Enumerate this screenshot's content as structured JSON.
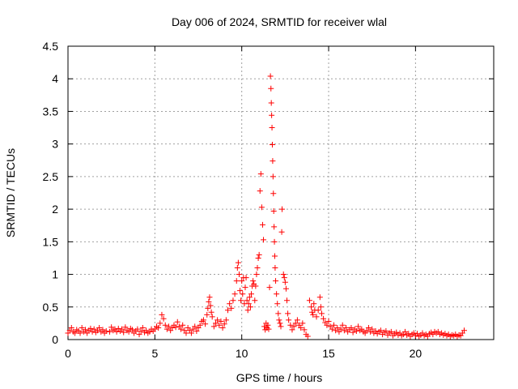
{
  "chart_data": {
    "type": "scatter",
    "title": "Day 006 of 2024, SRMTID for receiver wlal",
    "xlabel": "GPS time / hours",
    "ylabel": "SRMTID / TECUs",
    "xlim": [
      0,
      24.5
    ],
    "ylim": [
      0,
      4.5
    ],
    "xticks": [
      0,
      5,
      10,
      15,
      20
    ],
    "xtick_labels": [
      "0",
      "5",
      "10",
      "15",
      "20"
    ],
    "yticks": [
      0,
      0.5,
      1,
      1.5,
      2,
      2.5,
      3,
      3.5,
      4,
      4.5
    ],
    "ytick_labels": [
      "0",
      "0.5",
      "1",
      "1.5",
      "2",
      "2.5",
      "3",
      "3.5",
      "4",
      "4.5"
    ],
    "grid": true,
    "marker": "plus",
    "color": "#ff0000",
    "series": [
      {
        "name": "SRMTID",
        "points": [
          [
            0.0,
            0.1
          ],
          [
            0.1,
            0.14
          ],
          [
            0.2,
            0.18
          ],
          [
            0.3,
            0.12
          ],
          [
            0.4,
            0.1
          ],
          [
            0.5,
            0.15
          ],
          [
            0.6,
            0.13
          ],
          [
            0.7,
            0.1
          ],
          [
            0.8,
            0.18
          ],
          [
            0.9,
            0.12
          ],
          [
            1.0,
            0.15
          ],
          [
            1.1,
            0.1
          ],
          [
            1.2,
            0.14
          ],
          [
            1.3,
            0.17
          ],
          [
            1.4,
            0.12
          ],
          [
            1.5,
            0.16
          ],
          [
            1.6,
            0.11
          ],
          [
            1.7,
            0.14
          ],
          [
            1.8,
            0.18
          ],
          [
            1.9,
            0.12
          ],
          [
            2.0,
            0.15
          ],
          [
            2.1,
            0.1
          ],
          [
            2.2,
            0.13
          ],
          [
            2.4,
            0.12
          ],
          [
            2.5,
            0.19
          ],
          [
            2.6,
            0.14
          ],
          [
            2.7,
            0.16
          ],
          [
            2.8,
            0.12
          ],
          [
            2.9,
            0.17
          ],
          [
            3.0,
            0.13
          ],
          [
            3.1,
            0.16
          ],
          [
            3.2,
            0.11
          ],
          [
            3.3,
            0.19
          ],
          [
            3.4,
            0.14
          ],
          [
            3.5,
            0.12
          ],
          [
            3.6,
            0.17
          ],
          [
            3.7,
            0.15
          ],
          [
            3.8,
            0.1
          ],
          [
            3.9,
            0.13
          ],
          [
            4.0,
            0.16
          ],
          [
            4.1,
            0.08
          ],
          [
            4.2,
            0.13
          ],
          [
            4.3,
            0.18
          ],
          [
            4.4,
            0.11
          ],
          [
            4.5,
            0.14
          ],
          [
            4.6,
            0.1
          ],
          [
            4.7,
            0.12
          ],
          [
            4.8,
            0.16
          ],
          [
            4.9,
            0.13
          ],
          [
            5.0,
            0.16
          ],
          [
            5.1,
            0.2
          ],
          [
            5.2,
            0.18
          ],
          [
            5.3,
            0.25
          ],
          [
            5.4,
            0.38
          ],
          [
            5.5,
            0.32
          ],
          [
            5.6,
            0.22
          ],
          [
            5.7,
            0.16
          ],
          [
            5.8,
            0.2
          ],
          [
            5.9,
            0.14
          ],
          [
            6.0,
            0.18
          ],
          [
            6.1,
            0.22
          ],
          [
            6.2,
            0.19
          ],
          [
            6.3,
            0.27
          ],
          [
            6.4,
            0.2
          ],
          [
            6.5,
            0.16
          ],
          [
            6.6,
            0.22
          ],
          [
            6.7,
            0.14
          ],
          [
            6.8,
            0.1
          ],
          [
            6.9,
            0.18
          ],
          [
            7.0,
            0.14
          ],
          [
            7.1,
            0.1
          ],
          [
            7.2,
            0.16
          ],
          [
            7.3,
            0.2
          ],
          [
            7.4,
            0.13
          ],
          [
            7.5,
            0.18
          ],
          [
            7.6,
            0.22
          ],
          [
            7.7,
            0.28
          ],
          [
            7.8,
            0.3
          ],
          [
            7.9,
            0.24
          ],
          [
            8.0,
            0.38
          ],
          [
            8.05,
            0.48
          ],
          [
            8.1,
            0.58
          ],
          [
            8.15,
            0.65
          ],
          [
            8.2,
            0.52
          ],
          [
            8.25,
            0.42
          ],
          [
            8.3,
            0.35
          ],
          [
            8.4,
            0.2
          ],
          [
            8.5,
            0.25
          ],
          [
            8.6,
            0.3
          ],
          [
            8.7,
            0.22
          ],
          [
            8.8,
            0.28
          ],
          [
            8.9,
            0.18
          ],
          [
            9.0,
            0.24
          ],
          [
            9.1,
            0.3
          ],
          [
            9.2,
            0.45
          ],
          [
            9.3,
            0.55
          ],
          [
            9.4,
            0.48
          ],
          [
            9.5,
            0.6
          ],
          [
            9.6,
            0.7
          ],
          [
            9.7,
            0.9
          ],
          [
            9.75,
            1.1
          ],
          [
            9.8,
            1.18
          ],
          [
            9.85,
            1.0
          ],
          [
            9.9,
            0.75
          ],
          [
            9.95,
            0.6
          ],
          [
            10.0,
            0.9
          ],
          [
            10.05,
            0.7
          ],
          [
            10.1,
            0.95
          ],
          [
            10.15,
            0.55
          ],
          [
            10.2,
            0.8
          ],
          [
            10.25,
            0.95
          ],
          [
            10.3,
            0.6
          ],
          [
            10.35,
            0.45
          ],
          [
            10.4,
            0.55
          ],
          [
            10.45,
            0.65
          ],
          [
            10.5,
            0.5
          ],
          [
            10.55,
            0.7
          ],
          [
            10.6,
            0.82
          ],
          [
            10.65,
            0.9
          ],
          [
            10.7,
            0.85
          ],
          [
            10.75,
            0.6
          ],
          [
            10.8,
            0.82
          ],
          [
            10.85,
            1.0
          ],
          [
            10.9,
            1.1
          ],
          [
            10.95,
            1.25
          ],
          [
            11.0,
            1.3
          ],
          [
            11.05,
            2.28
          ],
          [
            11.1,
            2.54
          ],
          [
            11.15,
            2.03
          ],
          [
            11.2,
            1.76
          ],
          [
            11.25,
            1.53
          ],
          [
            11.3,
            0.2
          ],
          [
            11.35,
            0.15
          ],
          [
            11.4,
            0.25
          ],
          [
            11.45,
            0.18
          ],
          [
            11.5,
            0.22
          ],
          [
            11.55,
            0.16
          ],
          [
            11.6,
            0.8
          ],
          [
            11.65,
            4.04
          ],
          [
            11.68,
            3.85
          ],
          [
            11.7,
            3.63
          ],
          [
            11.72,
            3.44
          ],
          [
            11.74,
            3.25
          ],
          [
            11.76,
            2.99
          ],
          [
            11.78,
            2.74
          ],
          [
            11.8,
            2.5
          ],
          [
            11.82,
            2.24
          ],
          [
            11.84,
            1.97
          ],
          [
            11.86,
            1.73
          ],
          [
            11.88,
            1.5
          ],
          [
            11.9,
            1.28
          ],
          [
            11.92,
            1.1
          ],
          [
            11.95,
            0.9
          ],
          [
            12.0,
            0.7
          ],
          [
            12.05,
            0.55
          ],
          [
            12.1,
            0.4
          ],
          [
            12.15,
            0.3
          ],
          [
            12.2,
            0.25
          ],
          [
            12.25,
            0.2
          ],
          [
            12.3,
            1.65
          ],
          [
            12.32,
            2.0
          ],
          [
            12.4,
            1.0
          ],
          [
            12.45,
            0.95
          ],
          [
            12.5,
            0.88
          ],
          [
            12.55,
            0.78
          ],
          [
            12.6,
            0.6
          ],
          [
            12.65,
            0.4
          ],
          [
            12.7,
            0.3
          ],
          [
            12.8,
            0.22
          ],
          [
            12.9,
            0.15
          ],
          [
            13.0,
            0.2
          ],
          [
            13.1,
            0.25
          ],
          [
            13.2,
            0.3
          ],
          [
            13.3,
            0.22
          ],
          [
            13.4,
            0.18
          ],
          [
            13.5,
            0.25
          ],
          [
            13.6,
            0.15
          ],
          [
            13.7,
            0.08
          ],
          [
            13.8,
            0.05
          ],
          [
            13.9,
            0.6
          ],
          [
            14.0,
            0.5
          ],
          [
            14.05,
            0.42
          ],
          [
            14.1,
            0.38
          ],
          [
            14.15,
            0.55
          ],
          [
            14.2,
            0.45
          ],
          [
            14.3,
            0.35
          ],
          [
            14.4,
            0.45
          ],
          [
            14.5,
            0.65
          ],
          [
            14.55,
            0.5
          ],
          [
            14.6,
            0.4
          ],
          [
            14.7,
            0.32
          ],
          [
            14.8,
            0.26
          ],
          [
            14.9,
            0.22
          ],
          [
            15.0,
            0.28
          ],
          [
            15.1,
            0.2
          ],
          [
            15.2,
            0.16
          ],
          [
            15.3,
            0.22
          ],
          [
            15.4,
            0.14
          ],
          [
            15.5,
            0.18
          ],
          [
            15.6,
            0.12
          ],
          [
            15.7,
            0.16
          ],
          [
            15.8,
            0.22
          ],
          [
            15.9,
            0.14
          ],
          [
            16.0,
            0.18
          ],
          [
            16.1,
            0.12
          ],
          [
            16.2,
            0.15
          ],
          [
            16.3,
            0.18
          ],
          [
            16.4,
            0.11
          ],
          [
            16.5,
            0.16
          ],
          [
            16.6,
            0.13
          ],
          [
            16.7,
            0.2
          ],
          [
            16.8,
            0.14
          ],
          [
            16.9,
            0.16
          ],
          [
            17.0,
            0.12
          ],
          [
            17.1,
            0.1
          ],
          [
            17.2,
            0.14
          ],
          [
            17.3,
            0.18
          ],
          [
            17.4,
            0.12
          ],
          [
            17.5,
            0.16
          ],
          [
            17.6,
            0.1
          ],
          [
            17.7,
            0.13
          ],
          [
            17.8,
            0.09
          ],
          [
            17.9,
            0.12
          ],
          [
            18.0,
            0.14
          ],
          [
            18.1,
            0.08
          ],
          [
            18.2,
            0.11
          ],
          [
            18.3,
            0.13
          ],
          [
            18.4,
            0.07
          ],
          [
            18.5,
            0.1
          ],
          [
            18.6,
            0.12
          ],
          [
            18.7,
            0.06
          ],
          [
            18.8,
            0.09
          ],
          [
            18.9,
            0.11
          ],
          [
            19.0,
            0.07
          ],
          [
            19.1,
            0.1
          ],
          [
            19.2,
            0.06
          ],
          [
            19.3,
            0.08
          ],
          [
            19.4,
            0.12
          ],
          [
            19.5,
            0.07
          ],
          [
            19.6,
            0.09
          ],
          [
            19.7,
            0.05
          ],
          [
            19.8,
            0.08
          ],
          [
            19.9,
            0.1
          ],
          [
            20.0,
            0.06
          ],
          [
            20.1,
            0.09
          ],
          [
            20.2,
            0.05
          ],
          [
            20.3,
            0.07
          ],
          [
            20.4,
            0.1
          ],
          [
            20.5,
            0.06
          ],
          [
            20.6,
            0.08
          ],
          [
            20.7,
            0.05
          ],
          [
            20.8,
            0.09
          ],
          [
            20.9,
            0.11
          ],
          [
            21.0,
            0.08
          ],
          [
            21.1,
            0.12
          ],
          [
            21.2,
            0.1
          ],
          [
            21.3,
            0.12
          ],
          [
            21.4,
            0.08
          ],
          [
            21.5,
            0.1
          ],
          [
            21.6,
            0.07
          ],
          [
            21.7,
            0.09
          ],
          [
            21.8,
            0.06
          ],
          [
            21.9,
            0.08
          ],
          [
            22.0,
            0.05
          ],
          [
            22.1,
            0.07
          ],
          [
            22.2,
            0.06
          ],
          [
            22.3,
            0.08
          ],
          [
            22.4,
            0.05
          ],
          [
            22.5,
            0.07
          ],
          [
            22.6,
            0.06
          ],
          [
            22.7,
            0.1
          ],
          [
            22.8,
            0.14
          ]
        ]
      }
    ]
  }
}
